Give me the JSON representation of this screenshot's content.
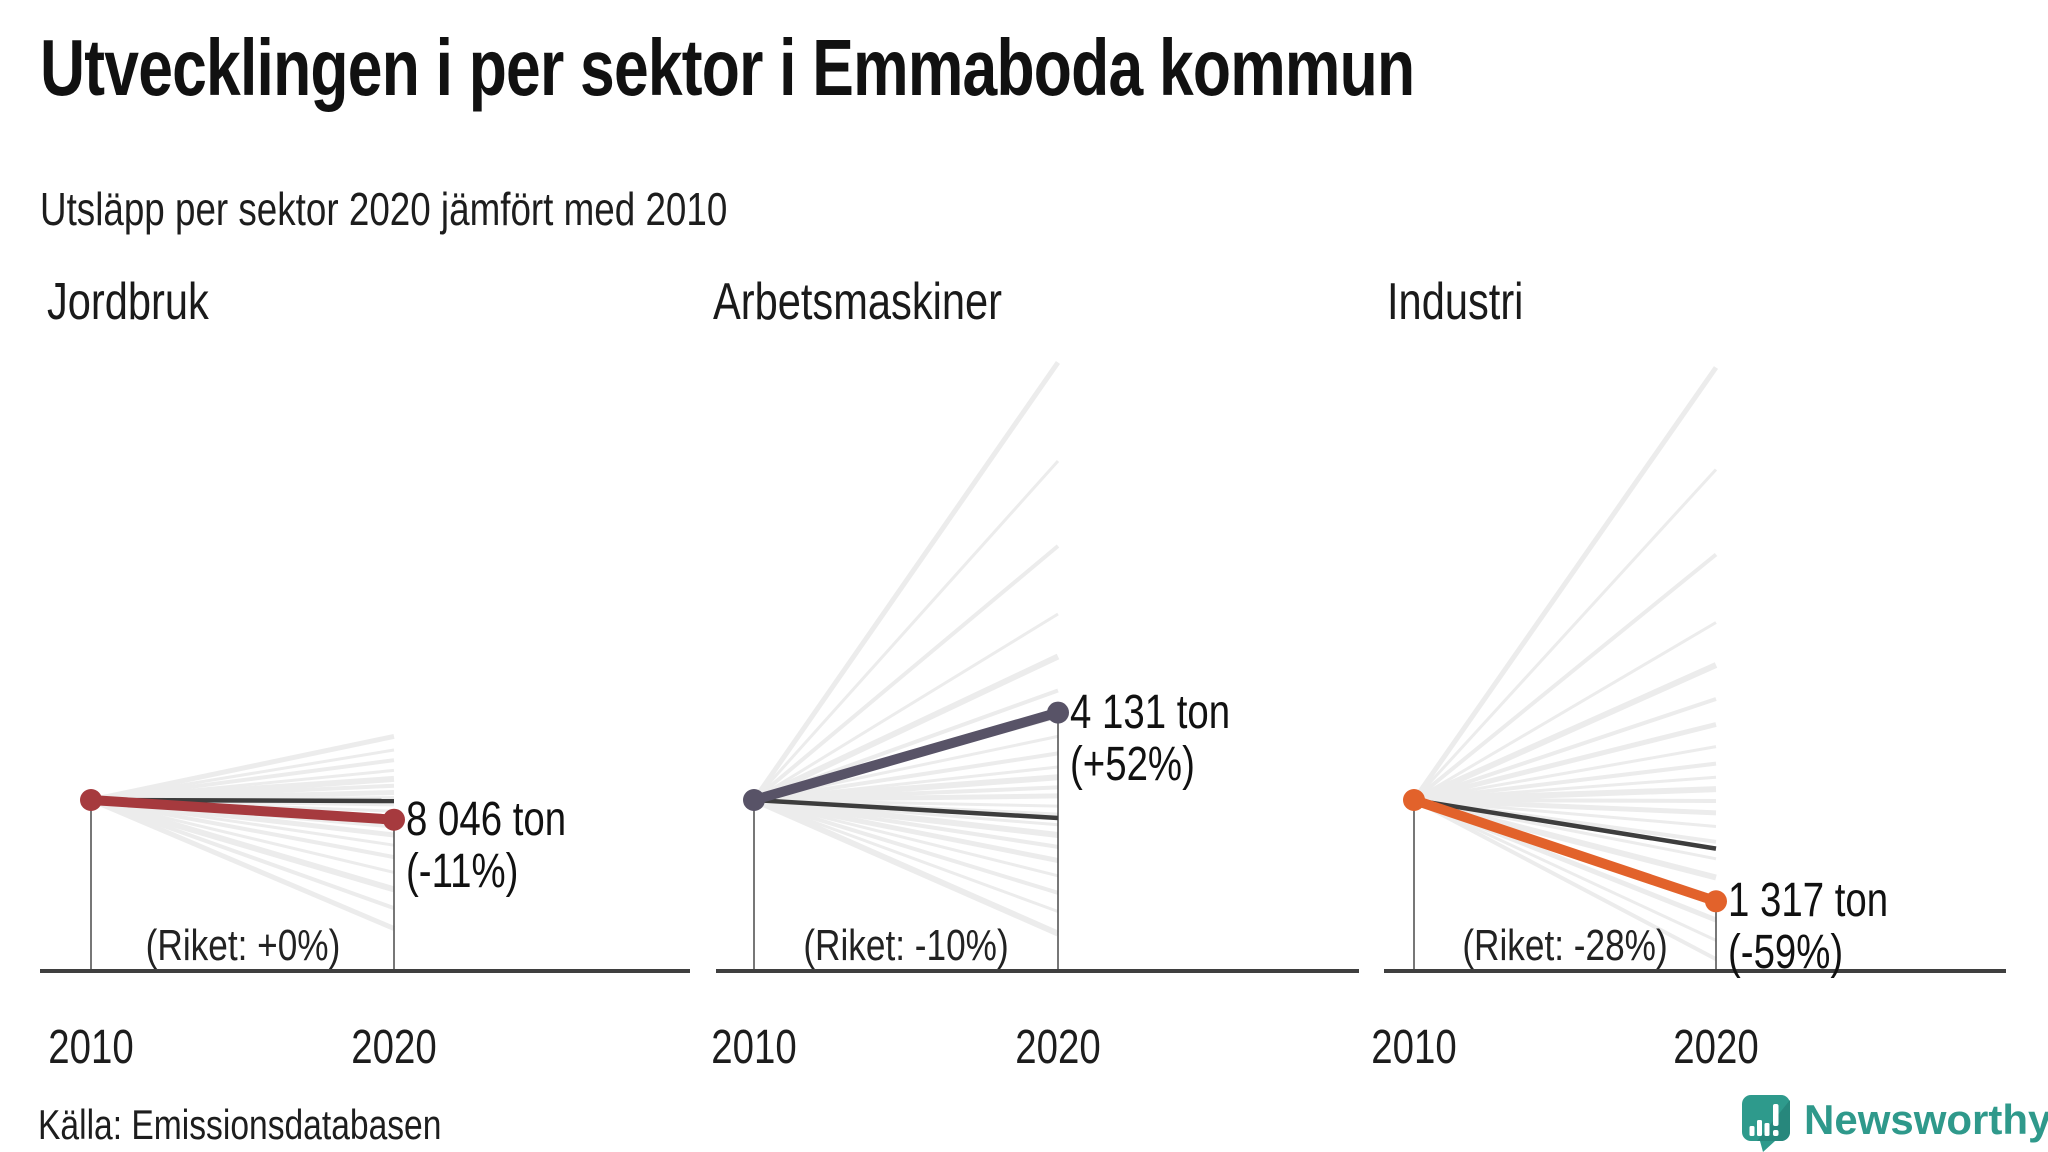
{
  "header": {
    "title": "Utvecklingen i per sektor i Emmaboda kommun",
    "subtitle": "Utsläpp per sektor 2020 jämfört med 2010"
  },
  "source": {
    "label": "Källa: Emissionsdatabasen"
  },
  "logo": {
    "text": "Newsworthy",
    "text_color": "#2F998B",
    "icon_color": "#2E9A8C",
    "icon_shade_color": "#27877C"
  },
  "chart_data": {
    "type": "line",
    "subtype": "slope-chart-small-multiples",
    "title": "Utvecklingen i per sektor i Emmaboda kommun",
    "subtitle": "Utsläpp per sektor 2020 jämfört med 2010",
    "years": [
      "2010",
      "2020"
    ],
    "unit": "ton",
    "riket_line_color": "#3D3D3D",
    "fan_line_color": "#ECECEC",
    "baseline_color": "#3F3F3F",
    "charts": [
      {
        "sector": "Jordbruk",
        "color": "#A63A3E",
        "value_2020_label": "8 046 ton",
        "change_label": "(-11%)",
        "change_pct": -11,
        "riket_label": "(Riket: +0%)",
        "riket_change_pct": 0,
        "fan_changes_pct": [
          38,
          30,
          24,
          18,
          13,
          9,
          5,
          2,
          -2,
          -6,
          -10,
          -15,
          -20,
          -26,
          -33,
          -42,
          -52,
          -63,
          -75
        ]
      },
      {
        "sector": "Arbetsmaskiner",
        "color": "#585367",
        "value_2020_label": "4 131 ton",
        "change_label": "(+52%)",
        "change_pct": 52,
        "riket_label": "(Riket: -10%)",
        "riket_change_pct": -10,
        "fan_changes_pct": [
          258,
          200,
          150,
          110,
          85,
          65,
          50,
          38,
          28,
          20,
          14,
          8,
          3,
          -3,
          -8,
          -14,
          -20,
          -27,
          -35,
          -44,
          -54,
          -65,
          -78
        ]
      },
      {
        "sector": "Industri",
        "color": "#E2622B",
        "value_2020_label": "1 317 ton",
        "change_label": "(-59%)",
        "change_pct": -59,
        "riket_label": "(Riket: -28%)",
        "riket_change_pct": -28,
        "fan_changes_pct": [
          255,
          195,
          145,
          105,
          80,
          60,
          45,
          32,
          22,
          14,
          7,
          0,
          -7,
          -15,
          -24,
          -34,
          -45,
          -57,
          -70,
          -82,
          -93
        ]
      }
    ]
  }
}
